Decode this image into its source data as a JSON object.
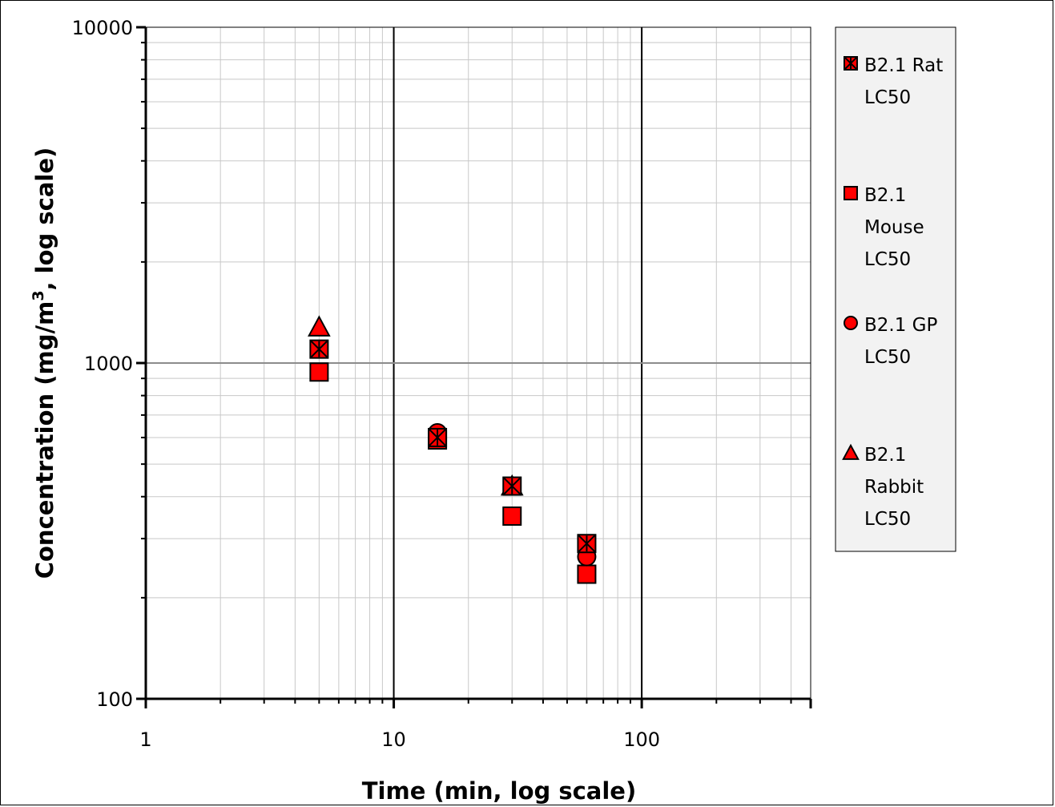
{
  "chart_data": {
    "type": "scatter",
    "x_scale": "log",
    "y_scale": "log",
    "xlabel": "Time (min, log scale)",
    "ylabel_parts": [
      "Concentration (mg/m",
      "3",
      ", log scale)"
    ],
    "xlim": [
      1,
      480
    ],
    "ylim": [
      100,
      10000
    ],
    "x_ticks": [
      "1",
      "10",
      "100"
    ],
    "y_ticks": [
      "100",
      "1000",
      "10000"
    ],
    "grid": true,
    "legend_position": "right",
    "marker_fill": "#ff0000",
    "marker_stroke": "#000000",
    "series": [
      {
        "name_lines": [
          "B2.1 Rat",
          "LC50"
        ],
        "marker": "x-square",
        "points": [
          {
            "x": 5,
            "y": 1100
          },
          {
            "x": 15,
            "y": 600
          },
          {
            "x": 30,
            "y": 430
          },
          {
            "x": 60,
            "y": 290
          }
        ]
      },
      {
        "name_lines": [
          "B2.1",
          "Mouse",
          "LC50"
        ],
        "marker": "square",
        "points": [
          {
            "x": 5,
            "y": 940
          },
          {
            "x": 15,
            "y": 590
          },
          {
            "x": 30,
            "y": 350
          },
          {
            "x": 60,
            "y": 235
          }
        ]
      },
      {
        "name_lines": [
          "B2.1 GP",
          "LC50"
        ],
        "marker": "circle",
        "points": [
          {
            "x": 15,
            "y": 620
          },
          {
            "x": 60,
            "y": 265
          }
        ]
      },
      {
        "name_lines": [
          "B2.1",
          "Rabbit",
          "LC50"
        ],
        "marker": "triangle",
        "points": [
          {
            "x": 5,
            "y": 1280
          },
          {
            "x": 30,
            "y": 430
          }
        ]
      }
    ]
  }
}
